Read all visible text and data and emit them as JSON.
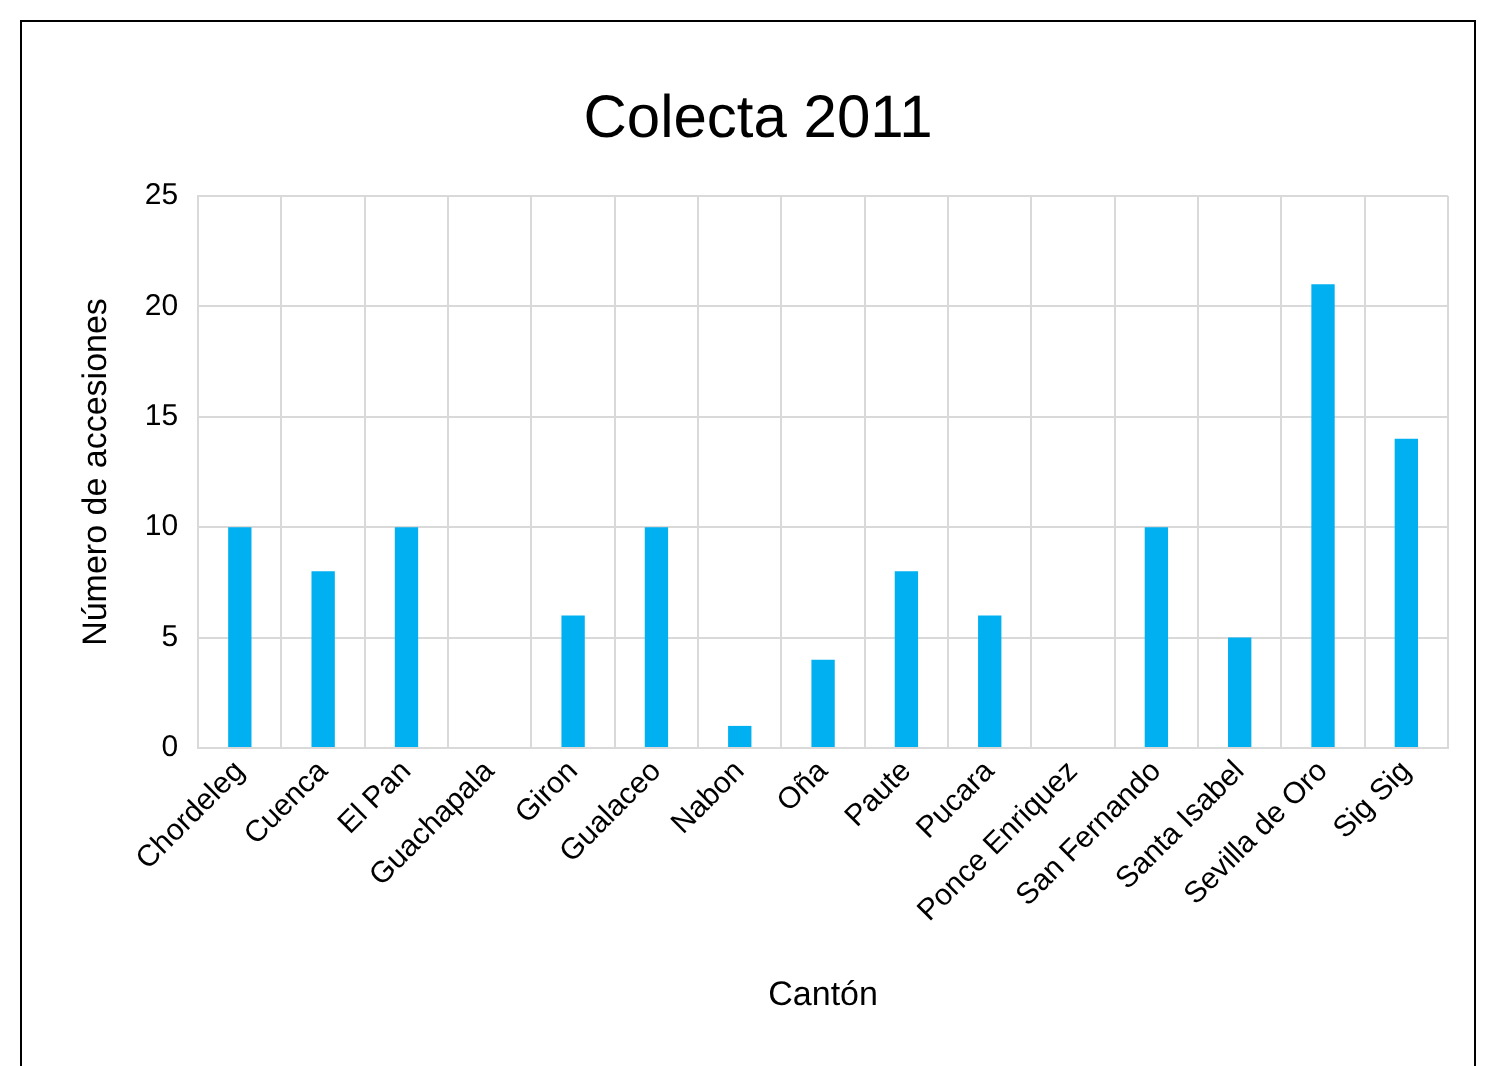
{
  "chart_data": {
    "type": "bar",
    "title": "Colecta 2011",
    "xlabel": "Cantón",
    "ylabel": "Número de accesiones",
    "categories": [
      "Chordeleg",
      "Cuenca",
      "El Pan",
      "Guachapala",
      "Giron",
      "Gualaceo",
      "Nabon",
      "Oña",
      "Paute",
      "Pucara",
      "Ponce Enriquez",
      "San Fernando",
      "Santa Isabel",
      "Sevilla de Oro",
      "Sig Sig"
    ],
    "values": [
      10,
      8,
      10,
      0,
      6,
      10,
      1,
      4,
      8,
      6,
      0,
      10,
      5,
      21,
      14
    ],
    "color": "#00b0f0",
    "ylim": [
      0,
      25
    ],
    "yticks": [
      0,
      5,
      10,
      15,
      20,
      25
    ],
    "grid": true,
    "legend": false
  }
}
